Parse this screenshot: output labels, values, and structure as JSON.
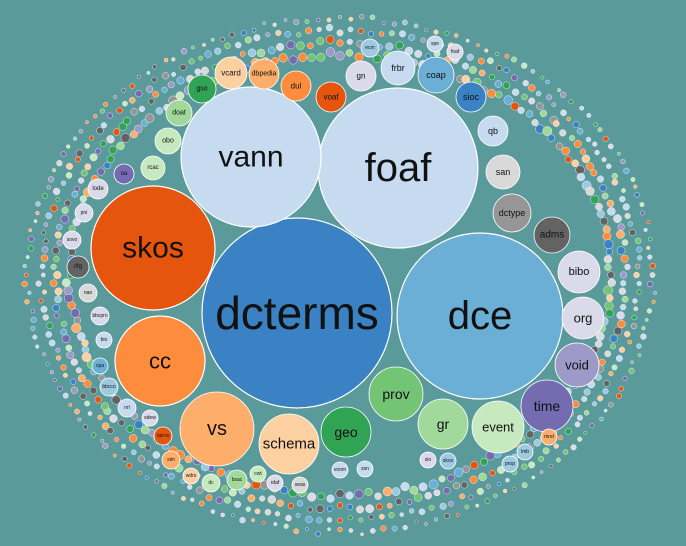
{
  "colors": {
    "background": "#5b9a9a",
    "steelblue": "#3b82c4",
    "lightblue": "#6baed6",
    "paleblue": "#c6dbef",
    "lightblue2": "#9ecae1",
    "orange_dark": "#e6550d",
    "orange": "#fd8d3c",
    "orange_light": "#fdae6b",
    "peach": "#fdd0a2",
    "green_dark": "#31a354",
    "green": "#74c476",
    "green_light": "#a1d99b",
    "green_pale": "#c7e9c0",
    "purple": "#756bb1",
    "purple_light": "#9e9ac8",
    "lavender": "#dadaeb",
    "gray_dark": "#636363",
    "gray": "#969696",
    "gray_light": "#d9d9d9"
  },
  "bubbles": [
    {
      "label": "dcterms"
    },
    {
      "label": "foaf"
    },
    {
      "label": "dce"
    },
    {
      "label": "vann"
    },
    {
      "label": "skos"
    },
    {
      "label": "cc"
    },
    {
      "label": "vs"
    },
    {
      "label": "schema"
    },
    {
      "label": "geo"
    },
    {
      "label": "prov"
    },
    {
      "label": "gr"
    },
    {
      "label": "event"
    },
    {
      "label": "time"
    },
    {
      "label": "void"
    },
    {
      "label": "org"
    },
    {
      "label": "bibo"
    },
    {
      "label": "adms"
    },
    {
      "label": "dctype"
    },
    {
      "label": "san"
    },
    {
      "label": "qb"
    },
    {
      "label": "sioc"
    },
    {
      "label": "coap"
    },
    {
      "label": "frbr"
    },
    {
      "label": "gn"
    },
    {
      "label": "voaf"
    },
    {
      "label": "dul"
    },
    {
      "label": "dbpedia"
    },
    {
      "label": "vcard"
    },
    {
      "label": "gso"
    },
    {
      "label": "doat"
    },
    {
      "label": "obo"
    },
    {
      "label": "rcac"
    },
    {
      "label": "oa"
    },
    {
      "label": "lode"
    },
    {
      "label": "pni"
    },
    {
      "label": "sovo"
    },
    {
      "label": "rlfg"
    },
    {
      "label": "nao"
    },
    {
      "label": "bbcpro"
    },
    {
      "label": "bio"
    },
    {
      "label": "cpa"
    },
    {
      "label": "bbcco"
    },
    {
      "label": "nrl"
    },
    {
      "label": "sdew"
    },
    {
      "label": "oprov"
    },
    {
      "label": "sim"
    },
    {
      "label": "wdrs"
    },
    {
      "label": "dc"
    },
    {
      "label": "bsac"
    },
    {
      "label": "cwt"
    },
    {
      "label": "rdaf"
    },
    {
      "label": "seas"
    },
    {
      "label": "voom"
    },
    {
      "label": "ssn"
    },
    {
      "label": "sio"
    },
    {
      "label": "skos"
    },
    {
      "label": "ecm"
    },
    {
      "label": "spe"
    },
    {
      "label": "foaf"
    },
    {
      "label": "prop"
    },
    {
      "label": "lmb"
    },
    {
      "label": "mrel"
    }
  ]
}
